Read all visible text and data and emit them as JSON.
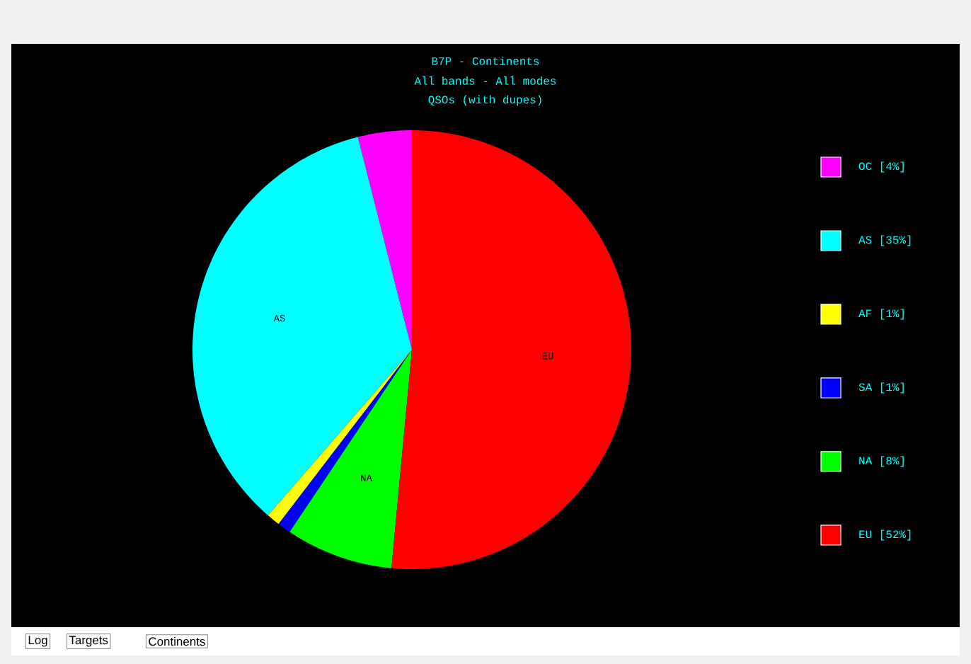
{
  "chart_data": {
    "type": "pie",
    "title": "B7P - Continents",
    "subtitle": "All bands - All modes",
    "annotations": [
      "QSOs (with dupes)",
      "Log",
      "Targets",
      "Continents"
    ],
    "categories": [
      "OC",
      "AS",
      "AF",
      "SA",
      "NA",
      "EU"
    ],
    "values": [
      4,
      35,
      1,
      1,
      8,
      52
    ],
    "colors": [
      "#ff00ff",
      "#00ffff",
      "#ffff00",
      "#0000ff",
      "#00ff00",
      "#ff0000"
    ],
    "value_labels": [
      "[4%]",
      "[35%]",
      "[1%]",
      "[1%]",
      "[8%]",
      "[52%]"
    ],
    "legend": "right"
  }
}
